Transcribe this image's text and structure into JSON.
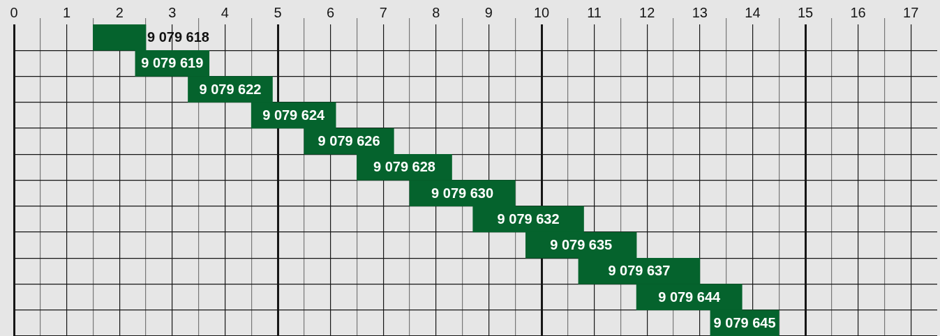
{
  "chart_data": {
    "type": "bar",
    "orientation": "horizontal",
    "categories": [
      "9 079 618",
      "9 079 619",
      "9 079 622",
      "9 079 624",
      "9 079 626",
      "9 079 628",
      "9 079 630",
      "9 079 632",
      "9 079 635",
      "9 079 637",
      "9 079 644",
      "9 079 645"
    ],
    "base": [
      1.5,
      2.3,
      3.3,
      4.5,
      5.5,
      6.5,
      7.5,
      8.7,
      9.7,
      10.7,
      11.8,
      13.2
    ],
    "values": [
      1.0,
      1.4,
      1.6,
      1.6,
      1.7,
      1.8,
      2.0,
      2.1,
      2.1,
      2.3,
      2.0,
      1.3
    ],
    "color": "#05632d",
    "xlim": [
      0,
      17.5
    ],
    "xticks": [
      0,
      {
        "value": 0.5,
        "label": null
      },
      1,
      {
        "value": 1.5,
        "label": null
      },
      2,
      {
        "value": 2.5,
        "label": null
      },
      3,
      {
        "value": 3.5,
        "label": null
      },
      4,
      {
        "value": 4.5,
        "label": null
      },
      5,
      {
        "value": 5.5,
        "label": null
      },
      6,
      {
        "value": 6.5,
        "label": null
      },
      7,
      {
        "value": 7.5,
        "label": null
      },
      8,
      {
        "value": 8.5,
        "label": null
      },
      9,
      {
        "value": 9.5,
        "label": null
      },
      10,
      {
        "value": 10.5,
        "label": null
      },
      11,
      {
        "value": 11.5,
        "label": null
      },
      12,
      {
        "value": 12.5,
        "label": null
      },
      13,
      {
        "value": 13.5,
        "label": null
      },
      14,
      {
        "value": 14.5,
        "label": null
      },
      15,
      {
        "value": 15.5,
        "label": null
      },
      16,
      {
        "value": 16.5,
        "label": null
      },
      17
    ],
    "grid": true
  }
}
